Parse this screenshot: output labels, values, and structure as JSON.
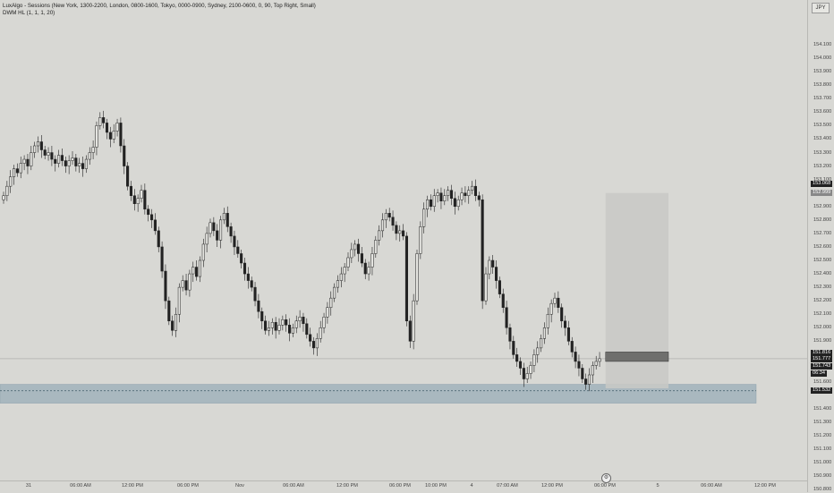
{
  "legend": {
    "line1": "LuxAlgo - Sessions (New York, 1300-2200, London, 0800-1600, Tokyo, 0000-0900, Sydney, 2100-0600, 0, 90, Top Right, Small)",
    "line2": "DWM HL (1, 1, 1, 20)"
  },
  "currency": "JPY",
  "price_axis": {
    "min": 150.8,
    "max": 154.2,
    "ticks": [
      "154.100",
      "154.000",
      "153.900",
      "153.800",
      "153.700",
      "153.600",
      "153.500",
      "153.400",
      "153.300",
      "153.200",
      "153.100",
      "152.900",
      "152.800",
      "152.700",
      "152.600",
      "152.500",
      "152.400",
      "152.300",
      "152.200",
      "152.100",
      "152.000",
      "151.900",
      "151.700",
      "151.600",
      "151.400",
      "151.300",
      "151.200",
      "151.100",
      "151.000",
      "150.900",
      "150.800"
    ]
  },
  "price_labels": [
    {
      "text": "153.068",
      "bg": "#222222"
    },
    {
      "text": "152.999",
      "bg": "#888888"
    },
    {
      "text": "151.816",
      "bg": "#222222"
    },
    {
      "text": "151.777",
      "bg": "#222222"
    },
    {
      "text": "151.743",
      "bg": "#222222"
    },
    {
      "text": "06:34",
      "bg": "#222222"
    },
    {
      "text": "151.532",
      "bg": "#222222"
    }
  ],
  "time_axis": {
    "ticks": [
      "31",
      "06:00 AM",
      "12:00 PM",
      "06:00 PM",
      "Nov",
      "06:00 AM",
      "12:00 PM",
      "06:00 PM",
      "10:00 PM",
      "4",
      "07:00 AM",
      "12:00 PM",
      "06:00 PM",
      "5",
      "06:00 AM",
      "12:00 PM"
    ]
  },
  "chart_data": {
    "type": "candlestick",
    "symbol": "JPY",
    "ylim": [
      150.8,
      154.2
    ],
    "close_series": [
      152.98,
      153.05,
      153.12,
      153.18,
      153.15,
      153.22,
      153.25,
      153.2,
      153.3,
      153.35,
      153.38,
      153.32,
      153.28,
      153.3,
      153.25,
      153.22,
      153.28,
      153.24,
      153.2,
      153.24,
      153.26,
      153.2,
      153.22,
      153.18,
      153.25,
      153.3,
      153.34,
      153.5,
      153.56,
      153.52,
      153.45,
      153.4,
      153.46,
      153.52,
      153.35,
      153.2,
      153.05,
      152.98,
      152.92,
      152.96,
      153.02,
      152.88,
      152.84,
      152.8,
      152.72,
      152.6,
      152.42,
      152.2,
      152.05,
      151.98,
      152.1,
      152.3,
      152.35,
      152.28,
      152.4,
      152.45,
      152.38,
      152.5,
      152.62,
      152.7,
      152.78,
      152.72,
      152.65,
      152.8,
      152.85,
      152.75,
      152.68,
      152.6,
      152.55,
      152.48,
      152.4,
      152.35,
      152.3,
      152.2,
      152.12,
      152.05,
      151.98,
      152.0,
      152.04,
      151.98,
      152.02,
      152.06,
      152.02,
      151.96,
      152.0,
      152.05,
      152.08,
      152.03,
      151.95,
      151.9,
      151.85,
      151.92,
      152.0,
      152.08,
      152.15,
      152.22,
      152.3,
      152.35,
      152.4,
      152.45,
      152.52,
      152.58,
      152.62,
      152.55,
      152.48,
      152.4,
      152.45,
      152.55,
      152.65,
      152.72,
      152.8,
      152.85,
      152.82,
      152.76,
      152.7,
      152.72,
      152.68,
      152.05,
      151.9,
      152.2,
      152.55,
      152.75,
      152.88,
      152.95,
      152.9,
      152.98,
      153.0,
      152.94,
      152.98,
      153.02,
      152.96,
      152.9,
      152.95,
      153.0,
      152.98,
      153.02,
      153.05,
      152.98,
      152.95,
      152.2,
      152.4,
      152.5,
      152.45,
      152.35,
      152.25,
      152.15,
      152.0,
      151.9,
      151.8,
      151.75,
      151.7,
      151.62,
      151.66,
      151.72,
      151.8,
      151.85,
      151.92,
      152.0,
      152.1,
      152.18,
      152.22,
      152.15,
      152.05,
      152.0,
      151.9,
      151.82,
      151.75,
      151.7,
      151.62,
      151.58,
      151.65,
      151.72,
      151.75,
      151.77
    ],
    "session_box": {
      "x_start_bar": 175,
      "top": 153.0,
      "bottom": 151.55
    },
    "dark_band": {
      "top": 151.82,
      "bottom": 151.75
    },
    "support_zone": {
      "top": 151.58,
      "bottom": 151.44
    },
    "support_line": 151.532,
    "last_price": 151.77
  }
}
